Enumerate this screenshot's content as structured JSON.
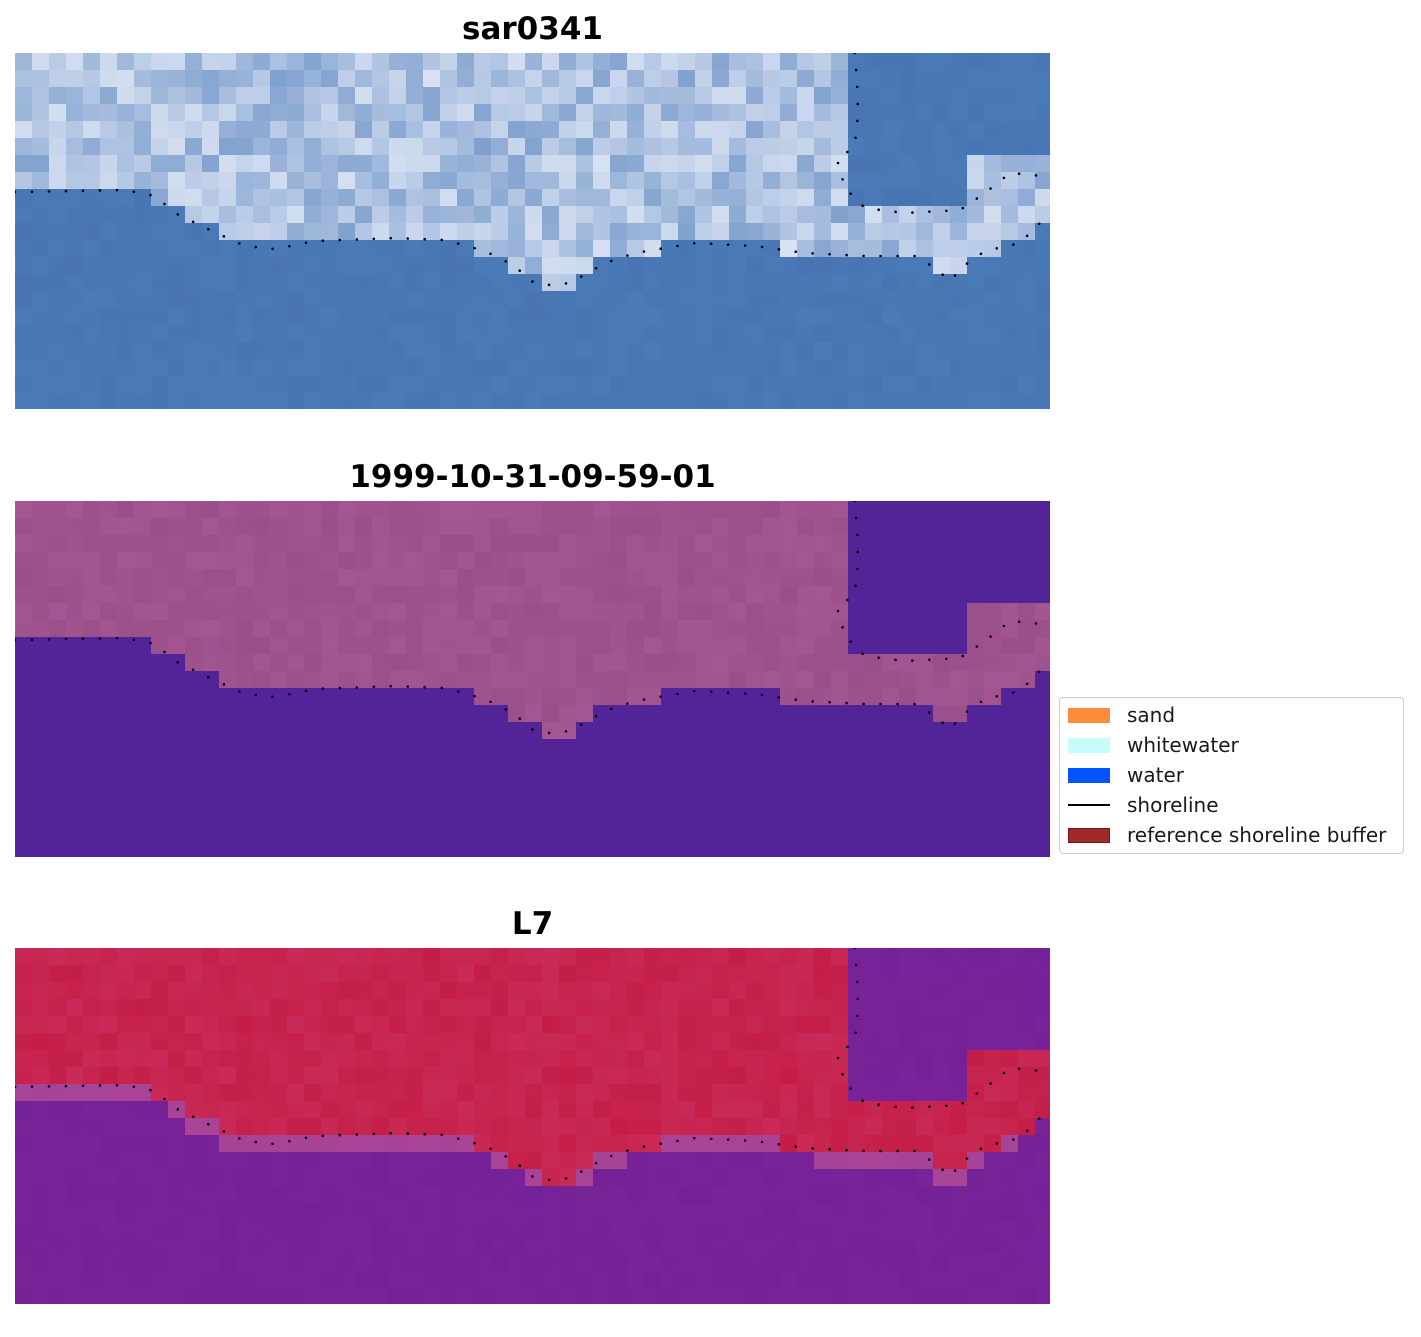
{
  "panels": [
    {
      "title": "sar0341",
      "style": "rgb"
    },
    {
      "title": "1999-10-31-09-59-01",
      "style": "classified"
    },
    {
      "title": "L7",
      "style": "index"
    }
  ],
  "legend": {
    "items": [
      {
        "label": "sand",
        "type": "patch",
        "color": "#ff8c3a"
      },
      {
        "label": "whitewater",
        "type": "patch",
        "color": "#c8fbfb"
      },
      {
        "label": "water",
        "type": "patch",
        "color": "#0055ff"
      },
      {
        "label": "shoreline",
        "type": "line",
        "color": "#000000"
      },
      {
        "label": "reference shoreline buffer",
        "type": "patch",
        "color": "#9e2a2a",
        "border": "#7a1515"
      }
    ]
  },
  "colors": {
    "rgb_water": "#4a7ab8",
    "rgb_cloud": "#dfe8f5",
    "classified_water": "#532497",
    "classified_land": "#a45690",
    "buffer_strip": "#c06094",
    "index_land": "#c41e48",
    "index_water": "#7a2399",
    "shoreline_dots": "#000000"
  }
}
